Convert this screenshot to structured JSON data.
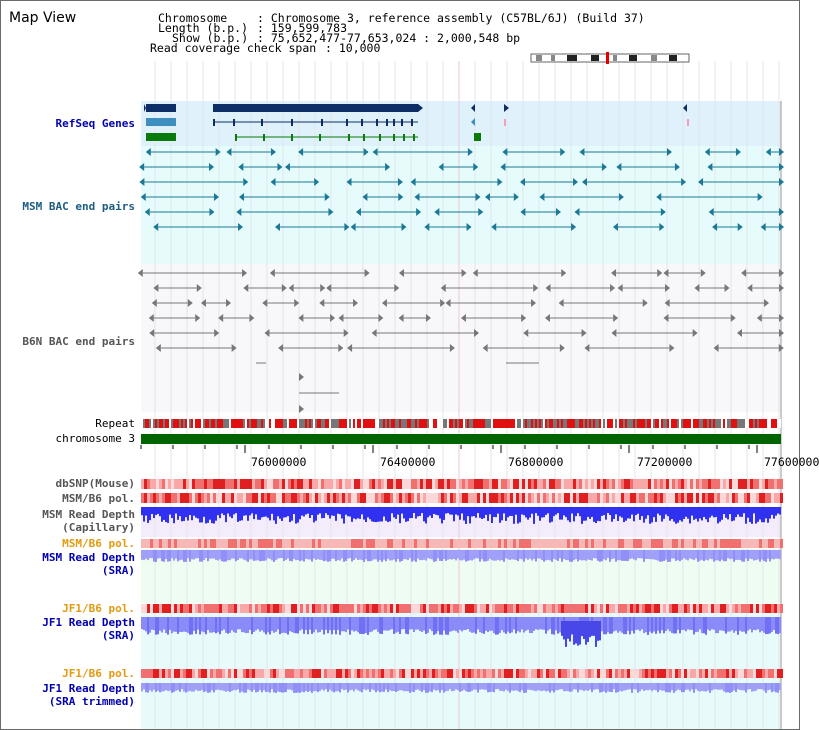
{
  "title": "Map View",
  "header": {
    "chromosome_label": "Chromosome",
    "chromosome_value": ": Chromosome 3, reference assembly (C57BL/6J) (Build 37)",
    "length_label": "Length (b.p.)",
    "length_value": ": 159,599,783",
    "show_label": "Show (b.p.)",
    "show_value": ": 75,652,477-77,653,024 : 2,000,548 bp",
    "coverage_label": "Read coverage check span",
    "coverage_value": ": 10,000"
  },
  "tracks": {
    "refseq": "RefSeq Genes",
    "msm_bac": "MSM BAC end pairs",
    "b6n_bac": "B6N BAC end pairs",
    "repeat": "Repeat",
    "chromosome": "chromosome 3",
    "dbsnp": "dbSNP(Mouse)",
    "msm_b6_pol_1": "MSM/B6 pol.",
    "msm_read_depth_cap_1": "MSM Read Depth",
    "msm_read_depth_cap_2": "(Capillary)",
    "msm_b6_pol_2": "MSM/B6 pol.",
    "msm_read_depth_sra_1": "MSM Read Depth",
    "msm_read_depth_sra_2": "(SRA)",
    "jf1_b6_pol_1": "JF1/B6 pol.",
    "jf1_read_depth_sra_1": "JF1 Read Depth",
    "jf1_read_depth_sra_2": "(SRA)",
    "jf1_b6_pol_2": "JF1/B6 pol.",
    "jf1_read_depth_trim_1": "JF1 Read Depth",
    "jf1_read_depth_trim_2": "(SRA trimmed)"
  },
  "axis": {
    "ticks": [
      "76000000",
      "76400000",
      "76800000",
      "77200000",
      "77600000"
    ]
  },
  "colors": {
    "refseq_bg": "#dff2fb",
    "msm_bac_bg": "#e6fbfb",
    "teal": "#1b7896",
    "chromosome_green": "#006400",
    "repeat_red": "#e01010",
    "depth_blue": "#3030f0",
    "depth_light": "#9090f8"
  }
}
